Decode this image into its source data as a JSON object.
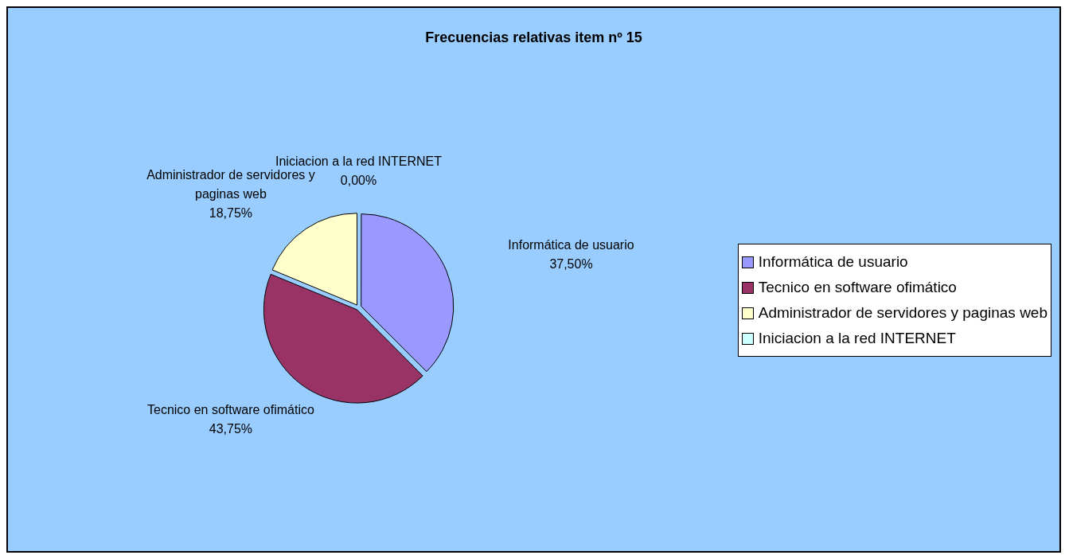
{
  "chart_data": {
    "type": "pie",
    "title": "Frecuencias relativas item nº 15",
    "categories": [
      "Informática de usuario",
      "Tecnico en software ofimático",
      "Administrador de servidores y paginas web",
      "Iniciacion a la red INTERNET"
    ],
    "values": [
      37.5,
      43.75,
      18.75,
      0
    ],
    "colors": [
      "#9999ff",
      "#993366",
      "#ffffcc",
      "#ccffff"
    ],
    "value_labels": [
      "37,50%",
      "43,75%",
      "18,75%",
      "0,00%"
    ],
    "legend": "right"
  }
}
